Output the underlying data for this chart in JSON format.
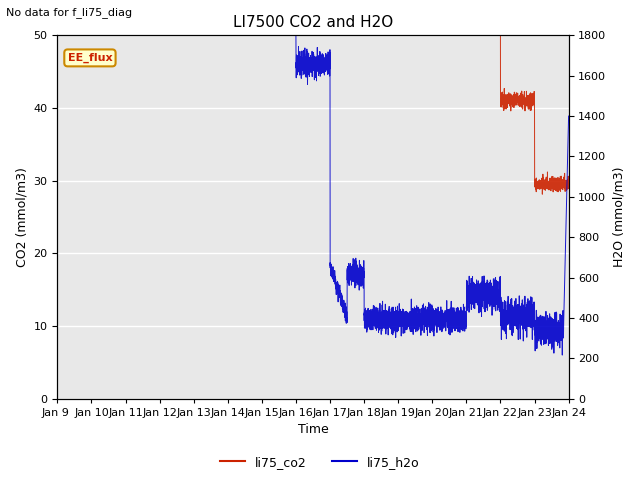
{
  "title": "LI7500 CO2 and H2O",
  "suptitle": "No data for f_li75_diag",
  "xlabel": "Time",
  "ylabel_left": "CO2 (mmol/m3)",
  "ylabel_right": "H2O (mmol/m3)",
  "ylim_left": [
    0,
    50
  ],
  "ylim_right": [
    0,
    1800
  ],
  "xtick_labels": [
    "Jan 9 ",
    "Jan 10",
    "Jan 11",
    "Jan 12",
    "Jan 13",
    "Jan 14",
    "Jan 15",
    "Jan 16",
    "Jan 17",
    "Jan 18",
    "Jan 19",
    "Jan 20",
    "Jan 21",
    "Jan 22",
    "Jan 23",
    "Jan 24"
  ],
  "legend_labels": [
    "li75_co2",
    "li75_h2o"
  ],
  "ee_flux_text": "EE_flux",
  "background_color": "#e8e8e8",
  "grid_color": "white",
  "co2_color": "#cc2200",
  "h2o_color": "#0000cc",
  "title_fontsize": 11,
  "label_fontsize": 9,
  "tick_fontsize": 8
}
